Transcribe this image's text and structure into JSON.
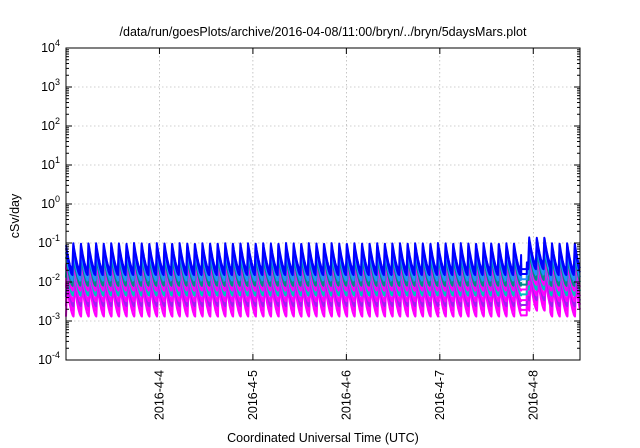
{
  "chart_data": {
    "type": "line",
    "title": "/data/run/goesPlots/archive/2016-04-08/11:00/bryn/../bryn/5daysMars.plot",
    "xlabel": "Coordinated Universal Time (UTC)",
    "ylabel": "cSv/day",
    "yscale": "log",
    "ylim": [
      0.0001,
      10000
    ],
    "y_ticks": [
      {
        "value": 0.0001,
        "base": "10",
        "exp": "-4"
      },
      {
        "value": 0.001,
        "base": "10",
        "exp": "-3"
      },
      {
        "value": 0.01,
        "base": "10",
        "exp": "-2"
      },
      {
        "value": 0.1,
        "base": "10",
        "exp": "-1"
      },
      {
        "value": 1,
        "base": "10",
        "exp": "0"
      },
      {
        "value": 10,
        "base": "10",
        "exp": "1"
      },
      {
        "value": 100,
        "base": "10",
        "exp": "2"
      },
      {
        "value": 1000,
        "base": "10",
        "exp": "3"
      },
      {
        "value": 10000,
        "base": "10",
        "exp": "4"
      }
    ],
    "x_unit": "days since 2016-04-03 00:00 UTC",
    "xlim": [
      3.0,
      8.5
    ],
    "x_ticks": [
      {
        "value": 4,
        "label": "2016-4-4"
      },
      {
        "value": 5,
        "label": "2016-4-5"
      },
      {
        "value": 6,
        "label": "2016-4-6"
      },
      {
        "value": 7,
        "label": "2016-4-7"
      },
      {
        "value": 8,
        "label": "2016-4-8"
      }
    ],
    "grid": true,
    "cycles_per_day": 12.3,
    "break_start": 7.87,
    "break_end": 7.93,
    "series": [
      {
        "name": "series-1",
        "color": "#ff00ff",
        "peak": 0.008,
        "trough": 0.0013
      },
      {
        "name": "series-2",
        "color": "#ff00ff",
        "peak": 0.011,
        "trough": 0.0018
      },
      {
        "name": "series-3",
        "color": "#a020f0",
        "peak": 0.014,
        "trough": 0.0024
      },
      {
        "name": "series-4",
        "color": "#ff00ff",
        "peak": 0.018,
        "trough": 0.0032
      },
      {
        "name": "series-5",
        "color": "#00c0c0",
        "peak": 0.025,
        "trough": 0.0045
      },
      {
        "name": "series-6",
        "color": "#ff00ff",
        "peak": 0.03,
        "trough": 0.006
      },
      {
        "name": "series-7",
        "color": "#008b8b",
        "peak": 0.045,
        "trough": 0.008
      },
      {
        "name": "series-8",
        "color": "#1e90ff",
        "peak": 0.06,
        "trough": 0.011
      },
      {
        "name": "series-9",
        "color": "#0000ff",
        "peak": 0.08,
        "trough": 0.015
      },
      {
        "name": "series-10",
        "color": "#0000ff",
        "peak": 0.1,
        "trough": 0.02
      }
    ]
  }
}
